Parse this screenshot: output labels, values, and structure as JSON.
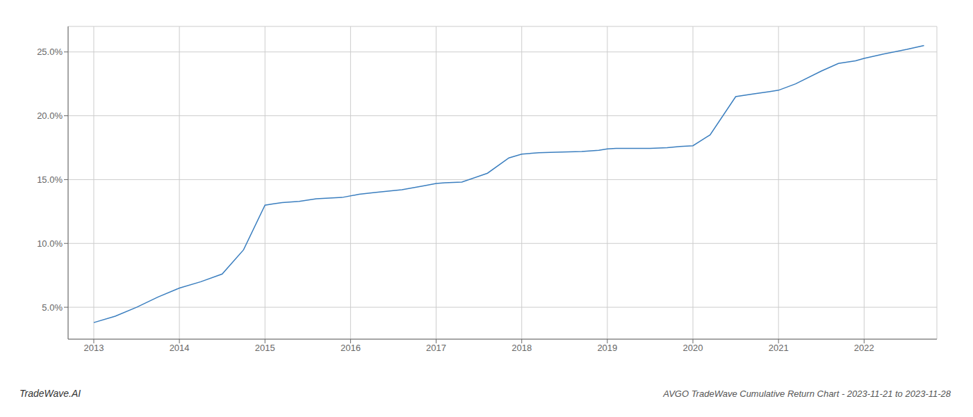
{
  "chart_data": {
    "type": "line",
    "title": "AVGO TradeWave Cumulative Return Chart - 2023-11-21 to 2023-11-28",
    "annotations": [
      "TradeWave.AI"
    ],
    "x": [
      2013.0,
      2013.25,
      2013.5,
      2013.75,
      2014.0,
      2014.25,
      2014.5,
      2014.75,
      2015.0,
      2015.1,
      2015.2,
      2015.4,
      2015.6,
      2015.9,
      2016.1,
      2016.3,
      2016.6,
      2016.85,
      2017.0,
      2017.1,
      2017.3,
      2017.6,
      2017.85,
      2018.0,
      2018.2,
      2018.4,
      2018.7,
      2018.9,
      2019.0,
      2019.1,
      2019.3,
      2019.5,
      2019.7,
      2019.85,
      2020.0,
      2020.2,
      2020.5,
      2020.7,
      2020.9,
      2021.0,
      2021.2,
      2021.5,
      2021.7,
      2021.9,
      2022.0,
      2022.2,
      2022.5,
      2022.7
    ],
    "values": [
      3.8,
      4.3,
      5.0,
      5.8,
      6.5,
      7.0,
      7.6,
      9.5,
      13.0,
      13.1,
      13.2,
      13.3,
      13.5,
      13.6,
      13.85,
      14.0,
      14.2,
      14.5,
      14.7,
      14.75,
      14.8,
      15.5,
      16.7,
      17.0,
      17.1,
      17.15,
      17.2,
      17.3,
      17.4,
      17.45,
      17.45,
      17.45,
      17.5,
      17.6,
      17.65,
      18.5,
      21.5,
      21.7,
      21.9,
      22.0,
      22.5,
      23.5,
      24.1,
      24.3,
      24.5,
      24.8,
      25.2,
      25.5
    ],
    "color": "#3a7ebf",
    "xlim": [
      2012.7,
      2022.85
    ],
    "ylim": [
      2.5,
      27.0
    ],
    "xticks": [
      2013,
      2014,
      2015,
      2016,
      2017,
      2018,
      2019,
      2020,
      2021,
      2022
    ],
    "yticks": [
      {
        "value": 5.0,
        "label": "5.0%"
      },
      {
        "value": 10.0,
        "label": "10.0%"
      },
      {
        "value": 15.0,
        "label": "15.0%"
      },
      {
        "value": 20.0,
        "label": "20.0%"
      },
      {
        "value": 25.0,
        "label": "25.0%"
      }
    ],
    "grid": true
  }
}
